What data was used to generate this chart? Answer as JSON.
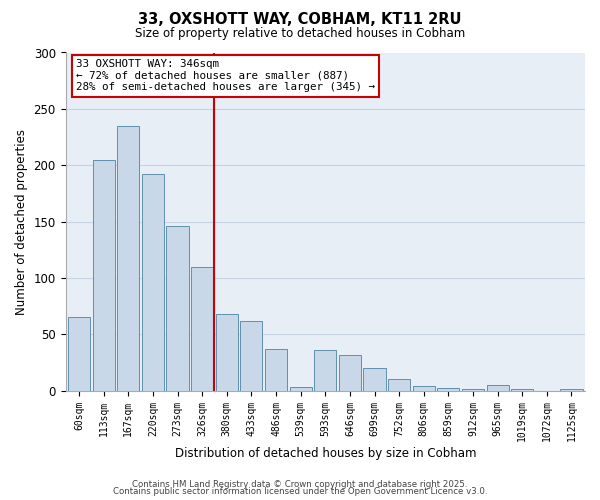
{
  "title": "33, OXSHOTT WAY, COBHAM, KT11 2RU",
  "subtitle": "Size of property relative to detached houses in Cobham",
  "xlabel": "Distribution of detached houses by size in Cobham",
  "ylabel": "Number of detached properties",
  "bar_labels": [
    "60sqm",
    "113sqm",
    "167sqm",
    "220sqm",
    "273sqm",
    "326sqm",
    "380sqm",
    "433sqm",
    "486sqm",
    "539sqm",
    "593sqm",
    "646sqm",
    "699sqm",
    "752sqm",
    "806sqm",
    "859sqm",
    "912sqm",
    "965sqm",
    "1019sqm",
    "1072sqm",
    "1125sqm"
  ],
  "bar_values": [
    65,
    205,
    235,
    192,
    146,
    110,
    68,
    62,
    37,
    3,
    36,
    32,
    20,
    10,
    4,
    2,
    1,
    5,
    1,
    0,
    1
  ],
  "bar_color": "#c8d8e8",
  "bar_edge_color": "#6090b0",
  "vline_color": "#cc0000",
  "ylim": [
    0,
    300
  ],
  "yticks": [
    0,
    50,
    100,
    150,
    200,
    250,
    300
  ],
  "annotation_text": "33 OXSHOTT WAY: 346sqm\n← 72% of detached houses are smaller (887)\n28% of semi-detached houses are larger (345) →",
  "annotation_box_color": "#ffffff",
  "annotation_box_edge": "#cc0000",
  "footer1": "Contains HM Land Registry data © Crown copyright and database right 2025.",
  "footer2": "Contains public sector information licensed under the Open Government Licence v3.0.",
  "background_color": "#ffffff",
  "grid_color": "#c8d4e4"
}
